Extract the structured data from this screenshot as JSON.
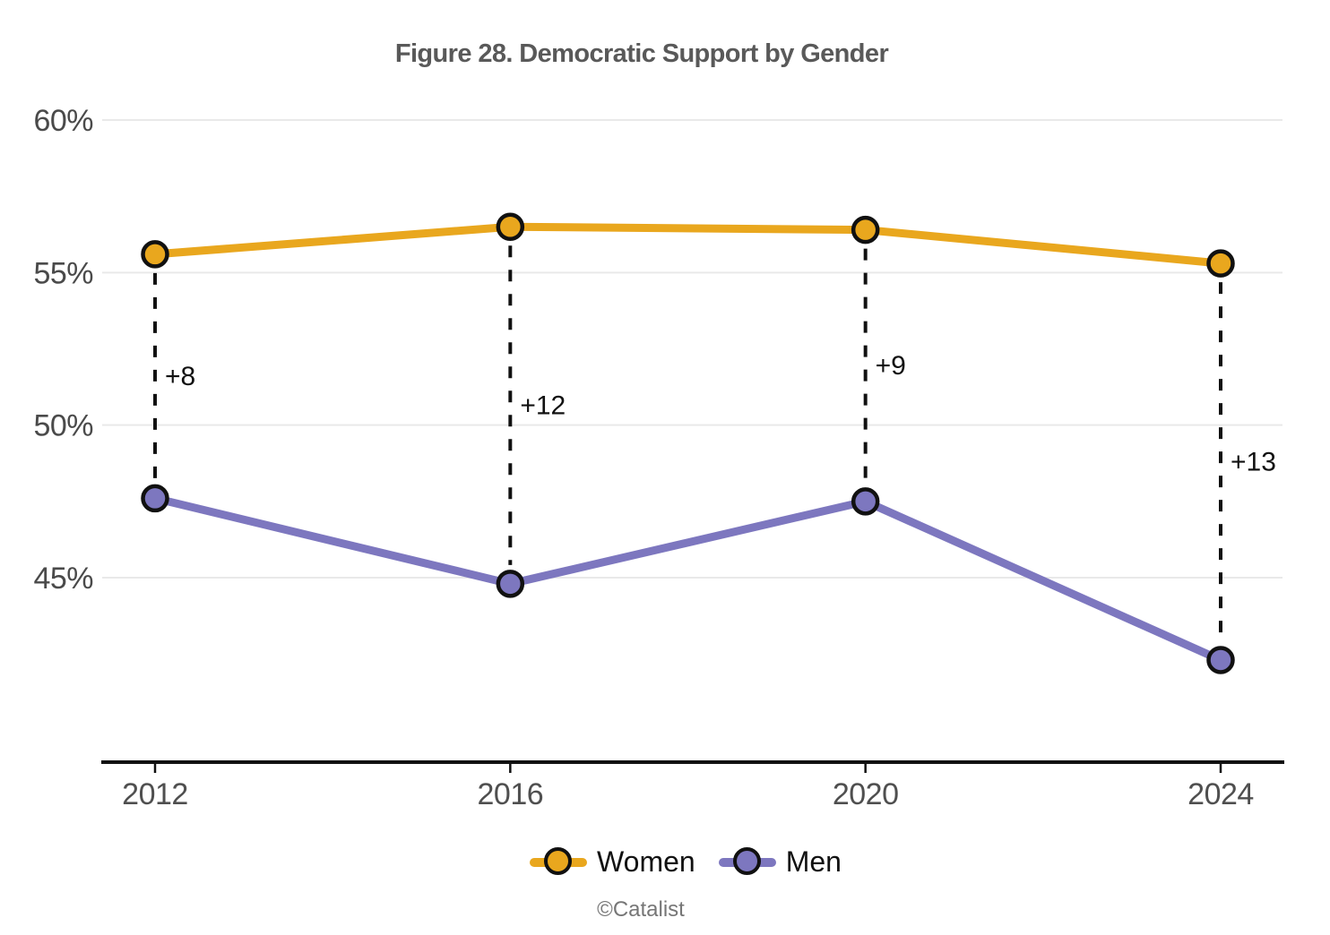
{
  "footer": "©Catalist",
  "chart_data": {
    "type": "line",
    "title": "Figure 28. Democratic Support by Gender",
    "x": [
      2012,
      2016,
      2020,
      2024
    ],
    "series": [
      {
        "name": "Women",
        "color": "#E9A71E",
        "values": [
          55.6,
          56.5,
          56.4,
          55.3
        ]
      },
      {
        "name": "Men",
        "color": "#7D77BF",
        "values": [
          47.6,
          44.8,
          47.5,
          42.3
        ]
      }
    ],
    "gap_labels": [
      "+8",
      "+12",
      "+9",
      "+13"
    ],
    "yticks": [
      "60%",
      "55%",
      "50%",
      "45%"
    ],
    "ytick_values": [
      60,
      55,
      50,
      45
    ],
    "ylim": [
      39,
      61
    ],
    "xlabel": "",
    "ylabel": "",
    "grid": "horizontal",
    "legend_position": "bottom",
    "marker": "circle-black-outline",
    "connector_style": "dashed-black-vertical"
  }
}
